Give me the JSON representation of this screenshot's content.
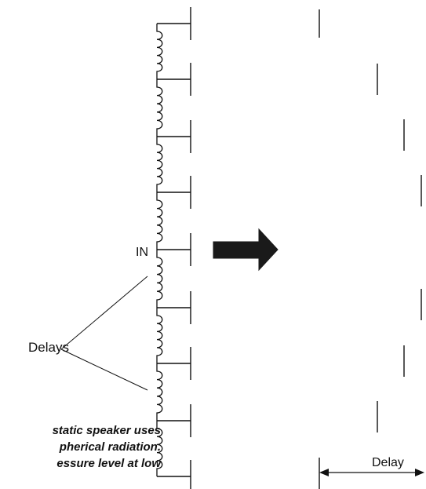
{
  "labels": {
    "input": "IN",
    "delays": "Delays",
    "delay": "Delay"
  },
  "caption_lines": [
    "static speaker uses",
    "pherical radiation.",
    "essure level at low"
  ],
  "colors": {
    "line": "#111111",
    "arrow": "#1a1a1a",
    "background": "#ffffff"
  }
}
